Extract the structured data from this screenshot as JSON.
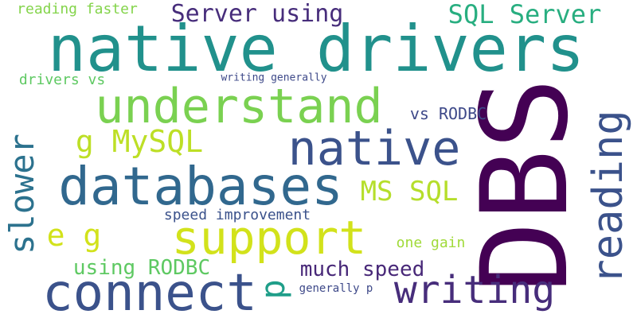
{
  "words": [
    {
      "key": "native_drivers",
      "text": "native drivers",
      "color": "#21918c"
    },
    {
      "key": "dbs",
      "text": "DBS",
      "color": "#440154"
    },
    {
      "key": "understand",
      "text": "understand",
      "color": "#7ad151"
    },
    {
      "key": "databases",
      "text": "databases",
      "color": "#31688e"
    },
    {
      "key": "native",
      "text": "native",
      "color": "#3b528b"
    },
    {
      "key": "connect",
      "text": "connect",
      "color": "#3b528b"
    },
    {
      "key": "support",
      "text": "support",
      "color": "#d2e21b"
    },
    {
      "key": "reading",
      "text": "reading",
      "color": "#3b528b"
    },
    {
      "key": "writing",
      "text": "writing",
      "color": "#472d7b"
    },
    {
      "key": "slower",
      "text": "slower",
      "color": "#2c728e"
    },
    {
      "key": "server_using",
      "text": "Server using",
      "color": "#472d7b"
    },
    {
      "key": "sql_server",
      "text": "SQL Server",
      "color": "#28ae80"
    },
    {
      "key": "g_mysql",
      "text": "g MySQL",
      "color": "#bddf26"
    },
    {
      "key": "ms_sql",
      "text": "MS SQL",
      "color": "#b5de2b"
    },
    {
      "key": "e_g",
      "text": "e g",
      "color": "#d2e21b"
    },
    {
      "key": "p",
      "text": "p",
      "color": "#1f9e89"
    },
    {
      "key": "using_rodbc",
      "text": "using RODBC",
      "color": "#5ec962"
    },
    {
      "key": "much_speed",
      "text": "much speed",
      "color": "#482878"
    },
    {
      "key": "reading_faster",
      "text": "reading faster",
      "color": "#84d44b"
    },
    {
      "key": "drivers_vs",
      "text": "drivers vs",
      "color": "#5ec962"
    },
    {
      "key": "writing_generally",
      "text": "writing generally",
      "color": "#3e4989"
    },
    {
      "key": "vs_rodbc",
      "text": "vs RODBC",
      "color": "#3e4989"
    },
    {
      "key": "speed_improvement",
      "text": "speed improvement",
      "color": "#3b528b"
    },
    {
      "key": "one_gain",
      "text": "one gain",
      "color": "#a0da39"
    },
    {
      "key": "generally_p",
      "text": "generally p",
      "color": "#3e4989"
    }
  ]
}
